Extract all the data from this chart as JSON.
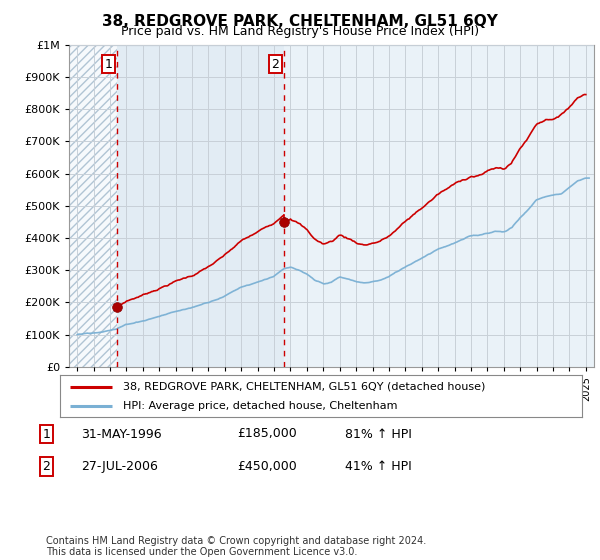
{
  "title": "38, REDGROVE PARK, CHELTENHAM, GL51 6QY",
  "subtitle": "Price paid vs. HM Land Registry's House Price Index (HPI)",
  "legend_line1": "38, REDGROVE PARK, CHELTENHAM, GL51 6QY (detached house)",
  "legend_line2": "HPI: Average price, detached house, Cheltenham",
  "table_row1": [
    "1",
    "31-MAY-1996",
    "£185,000",
    "81% ↑ HPI"
  ],
  "table_row2": [
    "2",
    "27-JUL-2006",
    "£450,000",
    "41% ↑ HPI"
  ],
  "footnote": "Contains HM Land Registry data © Crown copyright and database right 2024.\nThis data is licensed under the Open Government Licence v3.0.",
  "sale1_x": 1996.42,
  "sale1_y": 185000,
  "sale2_x": 2006.58,
  "sale2_y": 450000,
  "vline1_x": 1996.42,
  "vline2_x": 2006.58,
  "price_line_color": "#cc0000",
  "hpi_line_color": "#7ab0d4",
  "vline_color": "#cc0000",
  "hatch_color": "#c8d8e8",
  "shaded_bg_color": "#dce8f2",
  "ylim": [
    0,
    1000000
  ],
  "xlim": [
    1993.5,
    2025.5
  ],
  "grid_color": "#c8d0d8",
  "background_color": "#ffffff",
  "plot_bg_color": "#eaf2f8"
}
